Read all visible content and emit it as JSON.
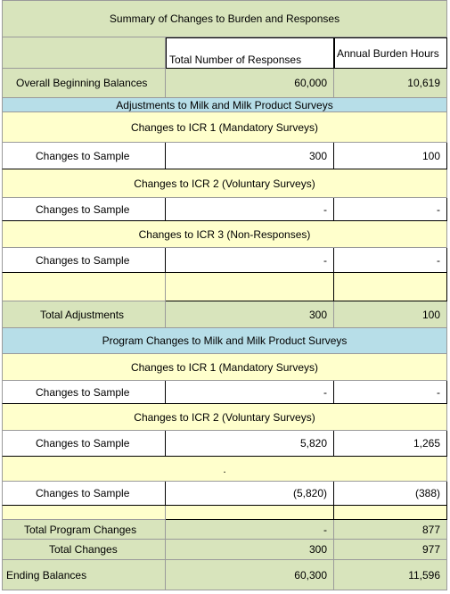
{
  "title": "Summary of Changes to Burden and Responses",
  "header": [
    "Total Number of Responses",
    "Annual Burden Hours"
  ],
  "rows": [
    [
      "Overall Beginning Balances",
      "60,000",
      "10,619"
    ],
    [
      "Adjustments to Milk and Milk Product Surveys"
    ],
    [
      "Changes to ICR 1 (Mandatory Surveys)"
    ],
    [
      "Changes to Sample",
      "300",
      "100"
    ],
    [
      "Changes to ICR 2 (Voluntary Surveys)"
    ],
    [
      "Changes to Sample",
      "-",
      "-"
    ],
    [
      "Changes to ICR 3 (Non-Responses)"
    ],
    [
      "Changes to Sample",
      "-",
      "-"
    ],
    [],
    [
      "Total Adjustments",
      "300",
      "100"
    ],
    [
      "Program Changes to Milk and Milk Product Surveys"
    ],
    [
      "Changes to ICR 1 (Mandatory Surveys)"
    ],
    [
      "Changes to Sample",
      "-",
      "-"
    ],
    [
      "Changes to ICR 2 (Voluntary Surveys)"
    ],
    [
      "Changes to Sample",
      "5,820",
      "1,265"
    ],
    [
      "."
    ],
    [
      "Changes to Sample",
      "(5,820)",
      "(388)"
    ],
    [],
    [
      "Total Program Changes",
      "-",
      "877"
    ],
    [
      "Total Changes",
      "300",
      "977"
    ],
    [
      "Ending Balances",
      "60,300",
      "11,596"
    ]
  ]
}
